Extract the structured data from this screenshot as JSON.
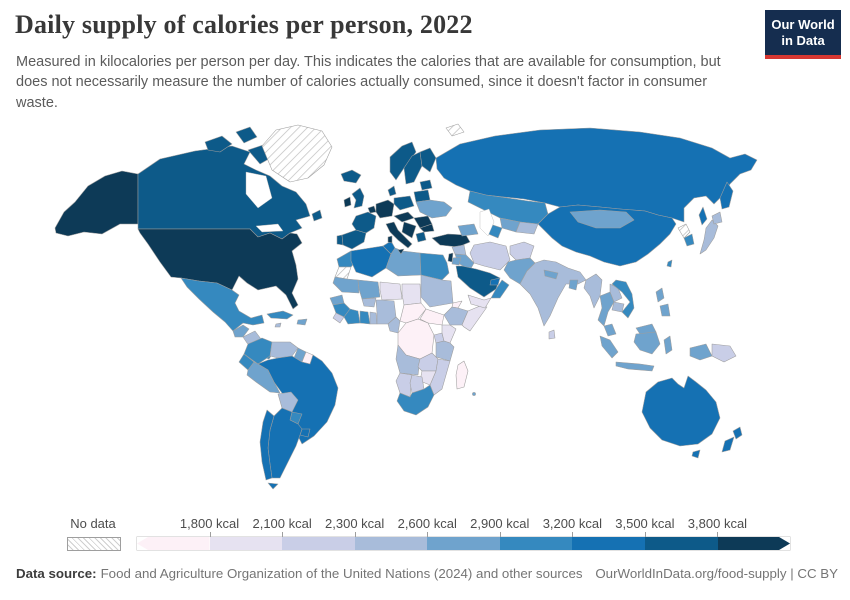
{
  "header": {
    "title": "Daily supply of calories per person, 2022",
    "subtitle": "Measured in kilocalories per person per day. This indicates the calories that are available for consumption, but does not necessarily measure the number of calories actually consumed, since it doesn't factor in consumer waste.",
    "logo": {
      "line1": "Our World",
      "line2": "in Data",
      "bg": "#152d4f",
      "accent": "#d73732"
    }
  },
  "footer": {
    "source_label": "Data source:",
    "source_text": "Food and Agriculture Organization of the United Nations (2024) and other sources",
    "credit": "OurWorldInData.org/food-supply | CC BY"
  },
  "chart_data": {
    "type": "choropleth",
    "title": "Daily supply of calories per person, 2022",
    "unit": "kcal",
    "legend_labels": [
      "1,800 kcal",
      "2,100 kcal",
      "2,300 kcal",
      "2,600 kcal",
      "2,900 kcal",
      "3,200 kcal",
      "3,500 kcal",
      "3,800 kcal"
    ],
    "thresholds_kcal": [
      1800,
      2100,
      2300,
      2600,
      2900,
      3200,
      3500,
      3800
    ],
    "palette": [
      "#fdf1f7",
      "#e6e2f1",
      "#c9cee7",
      "#a8bcda",
      "#6fa3cd",
      "#3589bf",
      "#1571b3",
      "#0d5a89",
      "#0d3a57"
    ],
    "no_data": {
      "label": "No data",
      "pattern": "diagonal-hatch"
    },
    "regions": [
      {
        "id": "greenland",
        "name": "Greenland",
        "bucket": 0
      },
      {
        "id": "svalbard",
        "name": "Svalbard",
        "bucket": 0
      },
      {
        "id": "western-sahara",
        "name": "Western Sahara",
        "bucket": 0
      },
      {
        "id": "north-korea",
        "name": "North Korea",
        "bucket": 0
      },
      {
        "id": "usa",
        "name": "United States",
        "bucket": 9
      },
      {
        "id": "canada",
        "name": "Canada",
        "bucket": 8
      },
      {
        "id": "iceland",
        "name": "Iceland",
        "bucket": 8
      },
      {
        "id": "mexico",
        "name": "Mexico",
        "bucket": 6
      },
      {
        "id": "guatemala",
        "name": "Guatemala",
        "bucket": 5
      },
      {
        "id": "honduras-nicaragua",
        "name": "Honduras and Nicaragua",
        "bucket": 4
      },
      {
        "id": "costa-rica-panama",
        "name": "Costa Rica and Panama",
        "bucket": 6
      },
      {
        "id": "cuba",
        "name": "Cuba",
        "bucket": 6
      },
      {
        "id": "jamaica",
        "name": "Jamaica",
        "bucket": 4
      },
      {
        "id": "hispaniola",
        "name": "Dominican Republic and Haiti",
        "bucket": 5
      },
      {
        "id": "colombia",
        "name": "Colombia",
        "bucket": 6
      },
      {
        "id": "venezuela",
        "name": "Venezuela",
        "bucket": 4
      },
      {
        "id": "guyana",
        "name": "Guyana",
        "bucket": 5
      },
      {
        "id": "suriname",
        "name": "Suriname",
        "bucket": 1
      },
      {
        "id": "ecuador",
        "name": "Ecuador",
        "bucket": 6
      },
      {
        "id": "peru",
        "name": "Peru",
        "bucket": 5
      },
      {
        "id": "brazil",
        "name": "Brazil",
        "bucket": 7
      },
      {
        "id": "bolivia",
        "name": "Bolivia",
        "bucket": 4
      },
      {
        "id": "paraguay",
        "name": "Paraguay",
        "bucket": 6
      },
      {
        "id": "uruguay",
        "name": "Uruguay",
        "bucket": 7
      },
      {
        "id": "argentina",
        "name": "Argentina",
        "bucket": 7
      },
      {
        "id": "chile",
        "name": "Chile",
        "bucket": 7
      },
      {
        "id": "morocco",
        "name": "Morocco",
        "bucket": 6
      },
      {
        "id": "algeria",
        "name": "Algeria",
        "bucket": 7
      },
      {
        "id": "tunisia",
        "name": "Tunisia",
        "bucket": 7
      },
      {
        "id": "libya",
        "name": "Libya",
        "bucket": 5
      },
      {
        "id": "egypt",
        "name": "Egypt",
        "bucket": 6
      },
      {
        "id": "mauritania",
        "name": "Mauritania",
        "bucket": 5
      },
      {
        "id": "senegal",
        "name": "Senegal",
        "bucket": 5
      },
      {
        "id": "guinea",
        "name": "Guinea",
        "bucket": 6
      },
      {
        "id": "sierra-leone-liberia",
        "name": "Sierra Leone and Liberia",
        "bucket": 3
      },
      {
        "id": "mali",
        "name": "Mali",
        "bucket": 5
      },
      {
        "id": "burkina-faso",
        "name": "Burkina Faso",
        "bucket": 4
      },
      {
        "id": "ivory-coast",
        "name": "Cote d'Ivoire",
        "bucket": 6
      },
      {
        "id": "ghana",
        "name": "Ghana",
        "bucket": 6
      },
      {
        "id": "togo-benin",
        "name": "Togo and Benin",
        "bucket": 4
      },
      {
        "id": "niger",
        "name": "Niger",
        "bucket": 2
      },
      {
        "id": "nigeria",
        "name": "Nigeria",
        "bucket": 4
      },
      {
        "id": "chad",
        "name": "Chad",
        "bucket": 2
      },
      {
        "id": "sudan",
        "name": "Sudan",
        "bucket": 4
      },
      {
        "id": "eritrea",
        "name": "Eritrea",
        "bucket": 1
      },
      {
        "id": "ethiopia",
        "name": "Ethiopia",
        "bucket": 4
      },
      {
        "id": "somalia",
        "name": "Somalia",
        "bucket": 2
      },
      {
        "id": "cameroon",
        "name": "Cameroon",
        "bucket": 4
      },
      {
        "id": "central-african-republic",
        "name": "Central African Republic",
        "bucket": 1
      },
      {
        "id": "south-sudan",
        "name": "South Sudan",
        "bucket": 1
      },
      {
        "id": "drc",
        "name": "Democratic Republic of Congo",
        "bucket": 1
      },
      {
        "id": "uganda",
        "name": "Uganda",
        "bucket": 3
      },
      {
        "id": "kenya",
        "name": "Kenya",
        "bucket": 2
      },
      {
        "id": "tanzania",
        "name": "Tanzania",
        "bucket": 4
      },
      {
        "id": "angola",
        "name": "Angola",
        "bucket": 4
      },
      {
        "id": "zambia",
        "name": "Zambia",
        "bucket": 3
      },
      {
        "id": "mozambique",
        "name": "Mozambique",
        "bucket": 3
      },
      {
        "id": "zimbabwe",
        "name": "Zimbabwe",
        "bucket": 2
      },
      {
        "id": "namibia",
        "name": "Namibia",
        "bucket": 3
      },
      {
        "id": "botswana",
        "name": "Botswana",
        "bucket": 3
      },
      {
        "id": "south-africa",
        "name": "South Africa",
        "bucket": 6
      },
      {
        "id": "madagascar",
        "name": "Madagascar",
        "bucket": 1
      },
      {
        "id": "mauritius",
        "name": "Mauritius",
        "bucket": 5
      },
      {
        "id": "portugal",
        "name": "Portugal",
        "bucket": 8
      },
      {
        "id": "spain",
        "name": "Spain",
        "bucket": 8
      },
      {
        "id": "france",
        "name": "France",
        "bucket": 8
      },
      {
        "id": "benelux",
        "name": "Belgium and Netherlands",
        "bucket": 9
      },
      {
        "id": "uk",
        "name": "United Kingdom",
        "bucket": 8
      },
      {
        "id": "ireland",
        "name": "Ireland",
        "bucket": 9
      },
      {
        "id": "norway",
        "name": "Norway",
        "bucket": 8
      },
      {
        "id": "sweden",
        "name": "Sweden",
        "bucket": 8
      },
      {
        "id": "finland",
        "name": "Finland",
        "bucket": 8
      },
      {
        "id": "denmark",
        "name": "Denmark",
        "bucket": 8
      },
      {
        "id": "germany",
        "name": "Germany",
        "bucket": 9
      },
      {
        "id": "poland",
        "name": "Poland",
        "bucket": 8
      },
      {
        "id": "baltics",
        "name": "Baltic states",
        "bucket": 8
      },
      {
        "id": "belarus",
        "name": "Belarus",
        "bucket": 8
      },
      {
        "id": "ukraine",
        "name": "Ukraine",
        "bucket": 5
      },
      {
        "id": "czech-hungary",
        "name": "Czechia, Austria and Hungary",
        "bucket": 9
      },
      {
        "id": "romania",
        "name": "Romania",
        "bucket": 9
      },
      {
        "id": "balkans",
        "name": "Balkans",
        "bucket": 9
      },
      {
        "id": "italy",
        "name": "Italy",
        "bucket": 9
      },
      {
        "id": "greece",
        "name": "Greece",
        "bucket": 8
      },
      {
        "id": "bulgaria",
        "name": "Bulgaria",
        "bucket": 9
      },
      {
        "id": "turkey",
        "name": "Turkey",
        "bucket": 9
      },
      {
        "id": "russia",
        "name": "Russia",
        "bucket": 7
      },
      {
        "id": "kazakhstan",
        "name": "Kazakhstan",
        "bucket": 6
      },
      {
        "id": "uzbekistan",
        "name": "Uzbekistan",
        "bucket": 5
      },
      {
        "id": "turkmenistan",
        "name": "Turkmenistan",
        "bucket": 6
      },
      {
        "id": "kyrgyzstan-tajikistan",
        "name": "Kyrgyzstan and Tajikistan",
        "bucket": 4
      },
      {
        "id": "caucasus",
        "name": "Caucasus states",
        "bucket": 5
      },
      {
        "id": "syria",
        "name": "Syria",
        "bucket": 4
      },
      {
        "id": "iraq",
        "name": "Iraq",
        "bucket": 5
      },
      {
        "id": "iran",
        "name": "Iran",
        "bucket": 3
      },
      {
        "id": "israel",
        "name": "Israel",
        "bucket": 9
      },
      {
        "id": "jordan",
        "name": "Jordan",
        "bucket": 5
      },
      {
        "id": "saudi-arabia",
        "name": "Saudi Arabia",
        "bucket": 8
      },
      {
        "id": "yemen",
        "name": "Yemen",
        "bucket": 2
      },
      {
        "id": "oman",
        "name": "Oman",
        "bucket": 6
      },
      {
        "id": "uae",
        "name": "United Arab Emirates",
        "bucket": 7
      },
      {
        "id": "afghanistan",
        "name": "Afghanistan",
        "bucket": 3
      },
      {
        "id": "pakistan",
        "name": "Pakistan",
        "bucket": 5
      },
      {
        "id": "india",
        "name": "India",
        "bucket": 4
      },
      {
        "id": "nepal",
        "name": "Nepal",
        "bucket": 5
      },
      {
        "id": "bangladesh",
        "name": "Bangladesh",
        "bucket": 5
      },
      {
        "id": "sri-lanka",
        "name": "Sri Lanka",
        "bucket": 3
      },
      {
        "id": "china",
        "name": "China",
        "bucket": 7
      },
      {
        "id": "mongolia",
        "name": "Mongolia",
        "bucket": 5
      },
      {
        "id": "south-korea",
        "name": "South Korea",
        "bucket": 6
      },
      {
        "id": "japan",
        "name": "Japan",
        "bucket": 4
      },
      {
        "id": "taiwan",
        "name": "Taiwan",
        "bucket": 6
      },
      {
        "id": "myanmar",
        "name": "Myanmar",
        "bucket": 4
      },
      {
        "id": "thailand",
        "name": "Thailand",
        "bucket": 5
      },
      {
        "id": "laos",
        "name": "Laos",
        "bucket": 4
      },
      {
        "id": "cambodia",
        "name": "Cambodia",
        "bucket": 4
      },
      {
        "id": "vietnam",
        "name": "Vietnam",
        "bucket": 6
      },
      {
        "id": "malaysia",
        "name": "Malaysia",
        "bucket": 5
      },
      {
        "id": "philippines",
        "name": "Philippines",
        "bucket": 5
      },
      {
        "id": "indonesia",
        "name": "Indonesia",
        "bucket": 5
      },
      {
        "id": "papua-new-guinea",
        "name": "Papua New Guinea",
        "bucket": 3
      },
      {
        "id": "australia",
        "name": "Australia",
        "bucket": 7
      },
      {
        "id": "new-zealand",
        "name": "New Zealand",
        "bucket": 7
      }
    ]
  }
}
